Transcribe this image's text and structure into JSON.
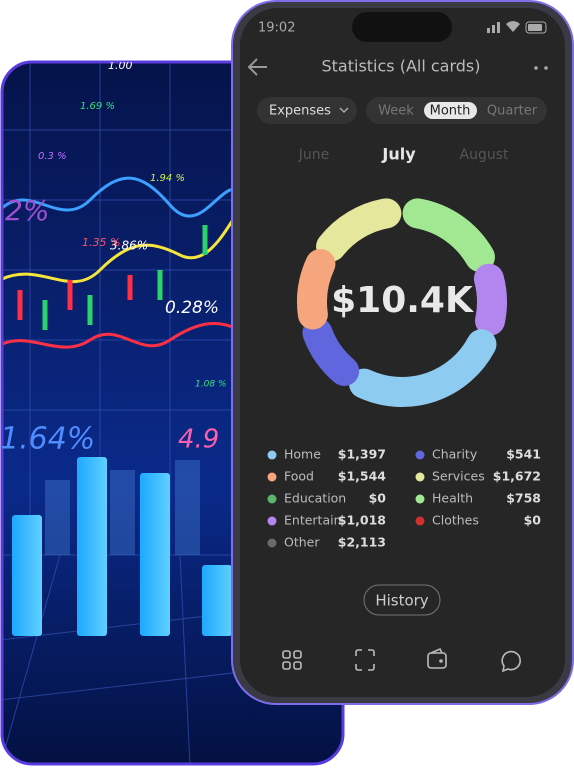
{
  "background": {
    "labels": [
      "1.69 %",
      "3.86%",
      "0.28%",
      "1.35 %",
      "1.64%",
      "4.9",
      "0.3 %",
      "2%",
      "1.94 %",
      "1.00",
      "1.08 %"
    ]
  },
  "status": {
    "time": "19:02"
  },
  "header": {
    "title": "Statistics (All cards)"
  },
  "filter": {
    "type": "Expenses",
    "periods": [
      "Week",
      "Month",
      "Quarter"
    ],
    "selected_period": "Month"
  },
  "months": {
    "previous": "June",
    "current": "July",
    "next": "August"
  },
  "total": "$10.4K",
  "legend": {
    "left": [
      {
        "name": "Home",
        "amount": "$1,397",
        "color": "#8dcbf0"
      },
      {
        "name": "Food",
        "amount": "$1,544",
        "color": "#f6a67c"
      },
      {
        "name": "Education",
        "amount": "$0",
        "color": "#5db36b"
      },
      {
        "name": "Entertain.",
        "amount": "$1,018",
        "color": "#b386ef"
      },
      {
        "name": "Other",
        "amount": "$2,113",
        "color": "#6a6a6a"
      }
    ],
    "right": [
      {
        "name": "Charity",
        "amount": "$541",
        "color": "#5f66de"
      },
      {
        "name": "Services",
        "amount": "$1,672",
        "color": "#e4e79c"
      },
      {
        "name": "Health",
        "amount": "$758",
        "color": "#a2e892"
      },
      {
        "name": "Clothes",
        "amount": "$0",
        "color": "#d1302e"
      }
    ]
  },
  "button": "History"
}
